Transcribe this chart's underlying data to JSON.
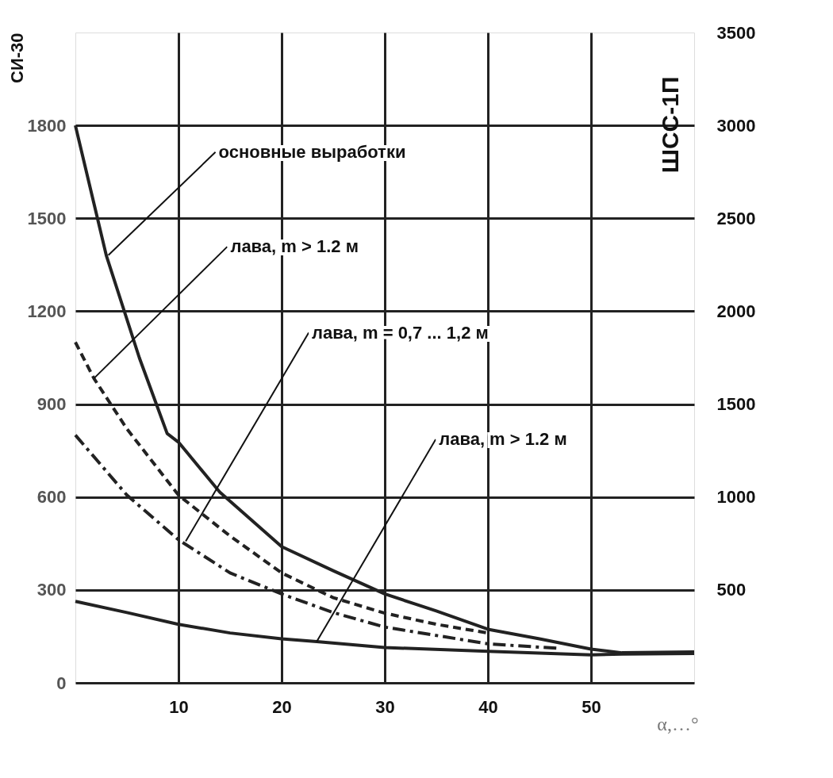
{
  "chart_data": {
    "type": "line",
    "xlabel": "α,…°",
    "ylabel": "СИ-30",
    "y2label": "ШСС-1П",
    "xlim": [
      0,
      60
    ],
    "xticks": [
      10,
      20,
      30,
      40,
      50
    ],
    "ylim": [
      0,
      2100
    ],
    "yticks": [
      0,
      300,
      600,
      900,
      1200,
      1500,
      1800
    ],
    "y2lim": [
      0,
      3500
    ],
    "y2ticks": [
      500,
      1000,
      1500,
      2000,
      2500,
      3000,
      3500
    ],
    "grid": true,
    "marker": "none",
    "series": [
      {
        "color": "#222222",
        "line_style": "solid",
        "x": [
          0,
          3,
          6.2,
          8.9,
          10,
          14,
          20,
          25,
          30,
          35,
          40,
          45,
          50,
          53,
          60
        ],
        "values": [
          1800,
          1380,
          1050,
          805,
          777,
          616,
          440,
          362,
          287,
          232,
          173,
          142,
          109,
          97,
          100
        ]
      },
      {
        "color": "#222222",
        "line_style": "dashed",
        "x": [
          0,
          1.8,
          5,
          10,
          15,
          20,
          25,
          30,
          35,
          40
        ],
        "values": [
          1100,
          983,
          820,
          606,
          474,
          355,
          275,
          225,
          189,
          161
        ]
      },
      {
        "color": "#222222",
        "line_style": "dashdot",
        "x": [
          0,
          5,
          10,
          15,
          20,
          25,
          30,
          40,
          47
        ],
        "values": [
          800,
          606,
          462,
          355,
          287,
          227,
          180,
          126,
          111
        ]
      },
      {
        "color": "#222222",
        "line_style": "solid",
        "x": [
          0,
          5,
          10,
          15,
          20,
          23.4,
          30,
          40,
          50,
          53,
          60
        ],
        "values": [
          263,
          227,
          189,
          161,
          142,
          133,
          114,
          102,
          90,
          93,
          95
        ]
      }
    ],
    "annotations": [
      {
        "text": "основные выработки",
        "x": 3.2,
        "y": 1381
      },
      {
        "text": "лава, m > 1.2 м",
        "x": 1.8,
        "y": 983
      },
      {
        "text": "лава, m = 0,7 ... 1,2 м",
        "x": 10.7,
        "y": 457
      },
      {
        "text": "лава, m > 1.2 м",
        "x": 23.4,
        "y": 133
      }
    ]
  }
}
